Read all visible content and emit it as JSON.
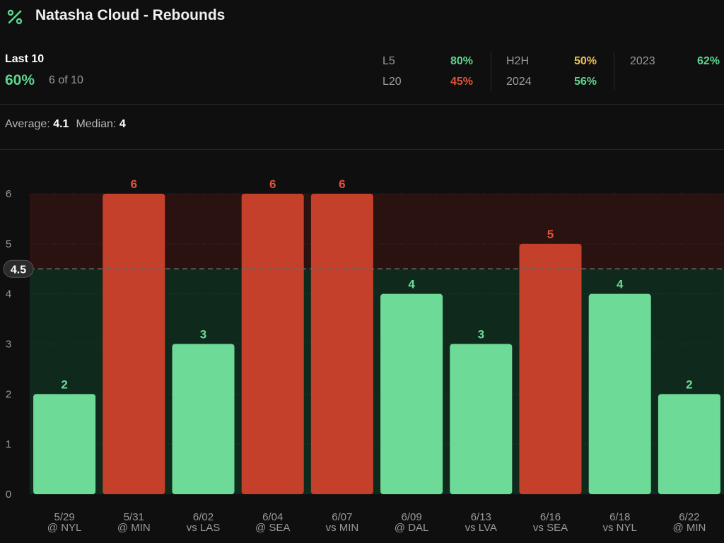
{
  "header": {
    "icon": "percent-icon",
    "title": "Natasha Cloud - Rebounds"
  },
  "summary": {
    "last_label": "Last 10",
    "hit_pct": "60%",
    "hit_count": "6 of 10",
    "stats": [
      {
        "label": "L5",
        "value": "80%",
        "color": "#5fd68f"
      },
      {
        "label": "L20",
        "value": "45%",
        "color": "#e0533a"
      },
      {
        "label": "H2H",
        "value": "50%",
        "color": "#f2c14e"
      },
      {
        "label": "2024",
        "value": "56%",
        "color": "#5fd68f"
      },
      {
        "label": "2023",
        "value": "62%",
        "color": "#5fd68f"
      }
    ]
  },
  "averages": {
    "average_label": "Average:",
    "average_value": "4.1",
    "median_label": "Median:",
    "median_value": "4"
  },
  "colors": {
    "over": "#c4402a",
    "under": "#6ddb97",
    "over_text": "#e0533a",
    "under_text": "#6ddb97",
    "over_zone": "#2a1210",
    "under_zone": "#0f2a1c"
  },
  "chart_data": {
    "type": "bar",
    "line": 4.5,
    "line_label": "4.5",
    "ylim": [
      0,
      6
    ],
    "yticks": [
      0,
      1,
      2,
      3,
      4,
      5,
      6
    ],
    "categories": [
      [
        "5/29",
        "@ NYL"
      ],
      [
        "5/31",
        "@ MIN"
      ],
      [
        "6/02",
        "vs LAS"
      ],
      [
        "6/04",
        "@ SEA"
      ],
      [
        "6/07",
        "vs MIN"
      ],
      [
        "6/09",
        "@ DAL"
      ],
      [
        "6/13",
        "vs LVA"
      ],
      [
        "6/16",
        "vs SEA"
      ],
      [
        "6/18",
        "vs NYL"
      ],
      [
        "6/22",
        "@ MIN"
      ]
    ],
    "values": [
      2,
      6,
      3,
      6,
      6,
      4,
      3,
      5,
      4,
      2
    ]
  }
}
